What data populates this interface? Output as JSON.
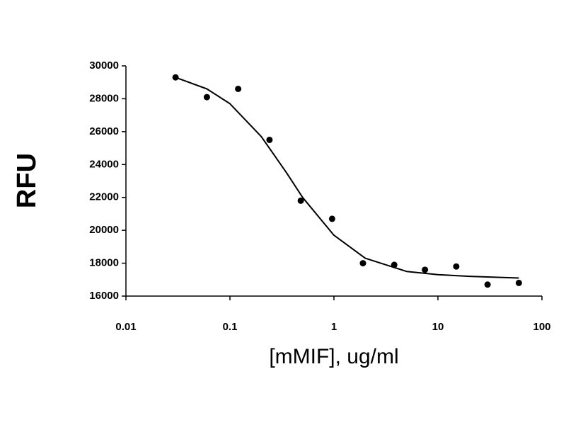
{
  "chart_data": {
    "type": "scatter",
    "x_label": "[mMIF], ug/ml",
    "y_label": "RFU",
    "x_log": true,
    "xlim": [
      0.01,
      100
    ],
    "xticks": [
      0.01,
      0.1,
      1,
      10,
      100
    ],
    "ylim": [
      16000,
      30000
    ],
    "yticks": [
      16000,
      18000,
      20000,
      22000,
      24000,
      26000,
      28000,
      30000
    ],
    "series": [
      {
        "type": "scatter",
        "color": "#000000",
        "x": [
          0.03,
          0.06,
          0.12,
          0.24,
          0.48,
          0.96,
          1.9,
          3.8,
          7.5,
          15,
          30,
          60
        ],
        "values": [
          29300,
          28100,
          28600,
          25500,
          21800,
          20700,
          18000,
          17900,
          17600,
          17800,
          16700,
          16800
        ]
      },
      {
        "type": "line",
        "color": "#000000",
        "x": [
          0.03,
          0.06,
          0.1,
          0.2,
          0.35,
          0.5,
          1,
          2,
          5,
          10,
          20,
          60
        ],
        "values": [
          29300,
          28600,
          27700,
          25700,
          23500,
          22000,
          19700,
          18300,
          17500,
          17300,
          17200,
          17100
        ]
      }
    ]
  }
}
